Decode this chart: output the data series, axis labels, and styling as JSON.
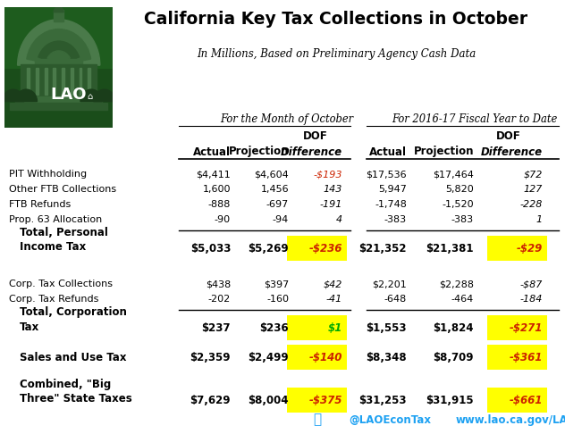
{
  "title": "California Key Tax Collections in October",
  "subtitle": "In Millions, Based on Preliminary Agency Cash Data",
  "group1_header": "For the Month of October",
  "group2_header": "For 2016-17 Fiscal Year to Date",
  "dof": "DOF",
  "col_headers": [
    "Actual",
    "Projection",
    "Difference",
    "Actual",
    "Projection",
    "Difference"
  ],
  "rows": [
    {
      "label": "PIT Withholding",
      "indent": false,
      "bold": false,
      "two_line": false,
      "oct_actual": "$4,411",
      "oct_proj": "$4,604",
      "oct_diff": "-$193",
      "fy_actual": "$17,536",
      "fy_proj": "$17,464",
      "fy_diff": "$72",
      "yellow_oct": false,
      "yellow_fy": false,
      "diff_oct_color": "#cc2200",
      "diff_fy_color": "#000000"
    },
    {
      "label": "Other FTB Collections",
      "indent": false,
      "bold": false,
      "two_line": false,
      "oct_actual": "1,600",
      "oct_proj": "1,456",
      "oct_diff": "143",
      "fy_actual": "5,947",
      "fy_proj": "5,820",
      "fy_diff": "127",
      "yellow_oct": false,
      "yellow_fy": false,
      "diff_oct_color": "#000000",
      "diff_fy_color": "#000000"
    },
    {
      "label": "FTB Refunds",
      "indent": false,
      "bold": false,
      "two_line": false,
      "oct_actual": "-888",
      "oct_proj": "-697",
      "oct_diff": "-191",
      "fy_actual": "-1,748",
      "fy_proj": "-1,520",
      "fy_diff": "-228",
      "yellow_oct": false,
      "yellow_fy": false,
      "diff_oct_color": "#000000",
      "diff_fy_color": "#000000"
    },
    {
      "label": "Prop. 63 Allocation",
      "indent": false,
      "bold": false,
      "two_line": false,
      "oct_actual": "-90",
      "oct_proj": "-94",
      "oct_diff": "4",
      "fy_actual": "-383",
      "fy_proj": "-383",
      "fy_diff": "1",
      "yellow_oct": false,
      "yellow_fy": false,
      "diff_oct_color": "#000000",
      "diff_fy_color": "#000000"
    },
    {
      "label": "Total, Personal\nIncome Tax",
      "indent": true,
      "bold": true,
      "two_line": true,
      "oct_actual": "$5,033",
      "oct_proj": "$5,269",
      "oct_diff": "-$236",
      "fy_actual": "$21,352",
      "fy_proj": "$21,381",
      "fy_diff": "-$29",
      "yellow_oct": true,
      "yellow_fy": true,
      "diff_oct_color": "#cc2200",
      "diff_fy_color": "#cc2200"
    },
    {
      "label": "Corp. Tax Collections",
      "indent": false,
      "bold": false,
      "two_line": false,
      "oct_actual": "$438",
      "oct_proj": "$397",
      "oct_diff": "$42",
      "fy_actual": "$2,201",
      "fy_proj": "$2,288",
      "fy_diff": "-$87",
      "yellow_oct": false,
      "yellow_fy": false,
      "diff_oct_color": "#000000",
      "diff_fy_color": "#000000"
    },
    {
      "label": "Corp. Tax Refunds",
      "indent": false,
      "bold": false,
      "two_line": false,
      "oct_actual": "-202",
      "oct_proj": "-160",
      "oct_diff": "-41",
      "fy_actual": "-648",
      "fy_proj": "-464",
      "fy_diff": "-184",
      "yellow_oct": false,
      "yellow_fy": false,
      "diff_oct_color": "#000000",
      "diff_fy_color": "#000000"
    },
    {
      "label": "Total, Corporation\nTax",
      "indent": true,
      "bold": true,
      "two_line": true,
      "oct_actual": "$237",
      "oct_proj": "$236",
      "oct_diff": "$1",
      "fy_actual": "$1,553",
      "fy_proj": "$1,824",
      "fy_diff": "-$271",
      "yellow_oct": true,
      "yellow_fy": true,
      "diff_oct_color": "#00aa00",
      "diff_fy_color": "#cc2200"
    },
    {
      "label": "Sales and Use Tax",
      "indent": true,
      "bold": true,
      "two_line": false,
      "oct_actual": "$2,359",
      "oct_proj": "$2,499",
      "oct_diff": "-$140",
      "fy_actual": "$8,348",
      "fy_proj": "$8,709",
      "fy_diff": "-$361",
      "yellow_oct": true,
      "yellow_fy": true,
      "diff_oct_color": "#cc2200",
      "diff_fy_color": "#cc2200"
    },
    {
      "label": "Combined, \"Big\nThree\" State Taxes",
      "indent": true,
      "bold": true,
      "two_line": true,
      "oct_actual": "$7,629",
      "oct_proj": "$8,004",
      "oct_diff": "-$375",
      "fy_actual": "$31,253",
      "fy_proj": "$31,915",
      "fy_diff": "-$661",
      "yellow_oct": true,
      "yellow_fy": true,
      "diff_oct_color": "#cc2200",
      "diff_fy_color": "#cc2200"
    }
  ],
  "line_after_rows": [
    3,
    6
  ],
  "twitter_handle": "@LAOEconTax",
  "website": "www.lao.ca.gov/LAOEconTax",
  "logo_bg": "#1e5c1e",
  "yellow": "#ffff00",
  "white": "#ffffff",
  "black": "#000000",
  "title_color": "#000000",
  "twitter_color": "#1da1f2"
}
